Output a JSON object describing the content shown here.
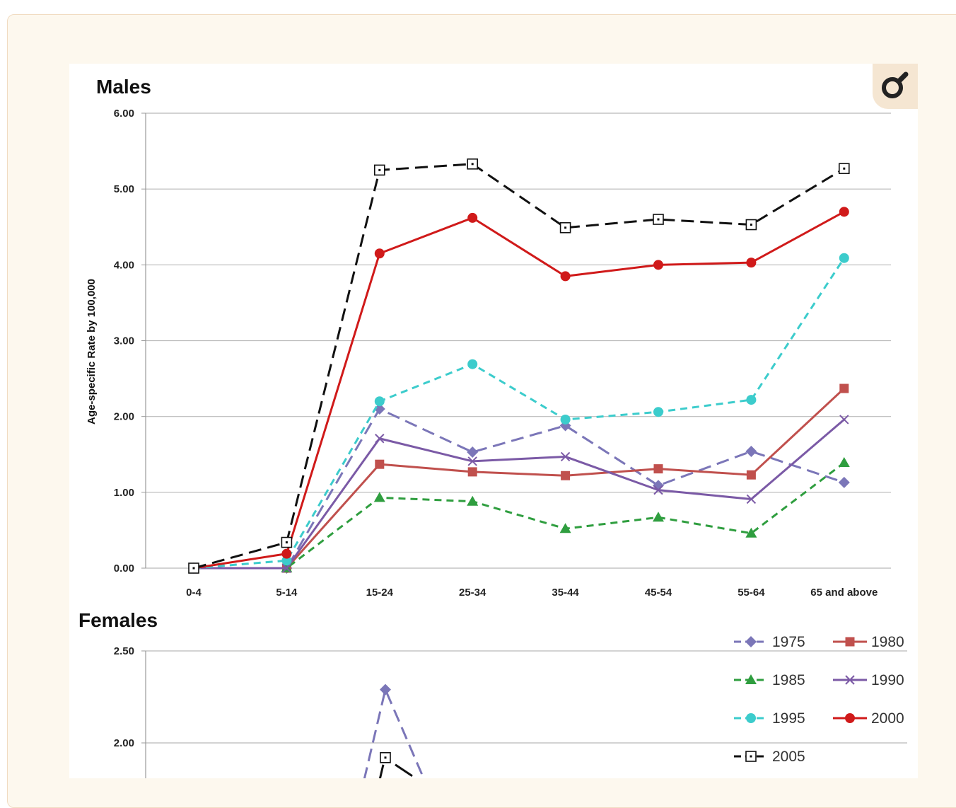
{
  "chart_data": [
    {
      "type": "line",
      "title": "Males",
      "ylabel": "Age-specific Rate by 100,000",
      "xlabel": "",
      "ylim": [
        0,
        6
      ],
      "yticks": [
        "0.00",
        "1.00",
        "2.00",
        "3.00",
        "4.00",
        "5.00",
        "6.00"
      ],
      "grid": true,
      "categories": [
        "0-4",
        "5-14",
        "15-24",
        "25-34",
        "35-44",
        "45-54",
        "55-64",
        "65 and above"
      ],
      "series": [
        {
          "name": "1975",
          "color": "#7b76b8",
          "dash": "long-dash",
          "marker": "diamond",
          "values": [
            0,
            0,
            2.1,
            1.53,
            1.88,
            1.09,
            1.54,
            1.13
          ]
        },
        {
          "name": "1980",
          "color": "#c0504d",
          "dash": "solid",
          "marker": "square",
          "values": [
            0,
            0,
            1.37,
            1.27,
            1.22,
            1.31,
            1.23,
            2.37
          ]
        },
        {
          "name": "1985",
          "color": "#2f9e3f",
          "dash": "dash",
          "marker": "triangle",
          "values": [
            0,
            0,
            0.93,
            0.88,
            0.52,
            0.67,
            0.46,
            1.39
          ]
        },
        {
          "name": "1990",
          "color": "#7b5aa6",
          "dash": "solid",
          "marker": "x",
          "values": [
            0,
            0,
            1.71,
            1.41,
            1.47,
            1.03,
            0.91,
            1.96
          ]
        },
        {
          "name": "1995",
          "color": "#3ccccc",
          "dash": "dash",
          "marker": "circle",
          "values": [
            0,
            0.1,
            2.2,
            2.69,
            1.96,
            2.06,
            2.22,
            4.09
          ]
        },
        {
          "name": "2000",
          "color": "#d01a1a",
          "dash": "solid",
          "marker": "circle",
          "values": [
            0,
            0.19,
            4.15,
            4.62,
            3.85,
            4.0,
            4.03,
            4.7
          ]
        },
        {
          "name": "2005",
          "color": "#111111",
          "dash": "long-dash",
          "marker": "open-square",
          "values": [
            0,
            0.34,
            5.25,
            5.33,
            4.49,
            4.6,
            4.53,
            5.27
          ]
        }
      ]
    },
    {
      "type": "line",
      "title": "Females",
      "ylabel": "",
      "xlabel": "",
      "yticks": [
        "2.00",
        "2.50"
      ],
      "grid": true,
      "legend_position": "top-right",
      "series": [
        {
          "name": "1975",
          "color": "#7b76b8",
          "dash": "long-dash",
          "marker": "diamond",
          "visible_points": [
            {
              "x": "15-24",
              "y": 2.29
            }
          ]
        },
        {
          "name": "2005",
          "color": "#111111",
          "dash": "long-dash",
          "marker": "open-square",
          "visible_points": [
            {
              "x": "15-24",
              "y": 1.92
            }
          ]
        }
      ]
    }
  ],
  "legend": [
    {
      "label": "1975",
      "color": "#7b76b8",
      "dash": "long-dash",
      "marker": "diamond"
    },
    {
      "label": "1980",
      "color": "#c0504d",
      "dash": "solid",
      "marker": "square"
    },
    {
      "label": "1985",
      "color": "#2f9e3f",
      "dash": "dash",
      "marker": "triangle"
    },
    {
      "label": "1990",
      "color": "#7b5aa6",
      "dash": "solid",
      "marker": "x"
    },
    {
      "label": "1995",
      "color": "#3ccccc",
      "dash": "dash",
      "marker": "circle"
    },
    {
      "label": "2000",
      "color": "#d01a1a",
      "dash": "solid",
      "marker": "circle"
    },
    {
      "label": "2005",
      "color": "#111111",
      "dash": "long-dash",
      "marker": "open-square"
    }
  ],
  "ui": {
    "zoom_icon": "magnify-icon",
    "accent": "#f5e6d2"
  }
}
